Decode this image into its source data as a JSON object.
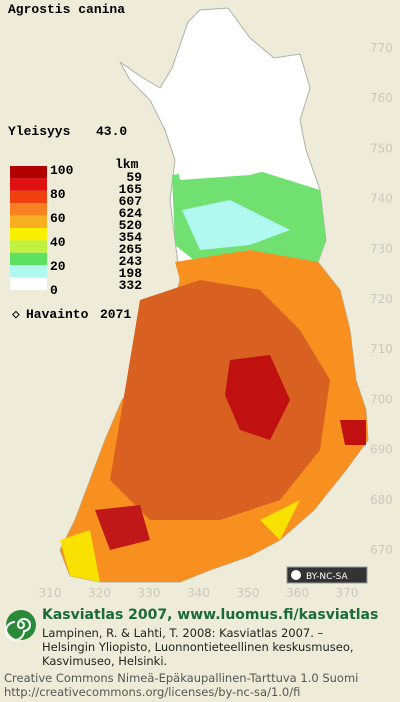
{
  "title": "Agrostis canina",
  "frequency": {
    "label": "Yleisyys",
    "value": "43.0"
  },
  "legend": {
    "scale_labels": [
      100,
      80,
      60,
      40,
      20,
      0
    ],
    "count_header": "lkm",
    "counts": [
      59,
      165,
      607,
      624,
      520,
      354,
      265,
      243,
      198,
      332
    ],
    "colors": [
      "#b00000",
      "#e01010",
      "#f04010",
      "#f88020",
      "#f8b020",
      "#f8f000",
      "#c0f040",
      "#60e060",
      "#b0f8f0",
      "#ffffff"
    ]
  },
  "observation": {
    "label": "Havainto",
    "value": 2071
  },
  "grid": {
    "y_labels": [
      770,
      760,
      750,
      740,
      730,
      720,
      710,
      700,
      690,
      680,
      670
    ],
    "x_labels": [
      310,
      320,
      330,
      340,
      350,
      360,
      370
    ]
  },
  "badge": "BY-NC-SA",
  "footer": {
    "site": "Kasviatlas 2007, www.luomus.fi/kasviatlas",
    "citation": [
      "Lampinen, R. & Lahti, T. 2008: Kasviatlas 2007. –",
      "Helsingin Yliopisto, Luonnontieteellinen keskusmuseo,",
      "Kasvimuseo, Helsinki."
    ],
    "license": [
      "Creative Commons Nimeä-Epäkaupallinen-Tarttuva 1.0 Suomi",
      "http://creativecommons.org/licenses/by-nc-sa/1.0/fi"
    ]
  }
}
